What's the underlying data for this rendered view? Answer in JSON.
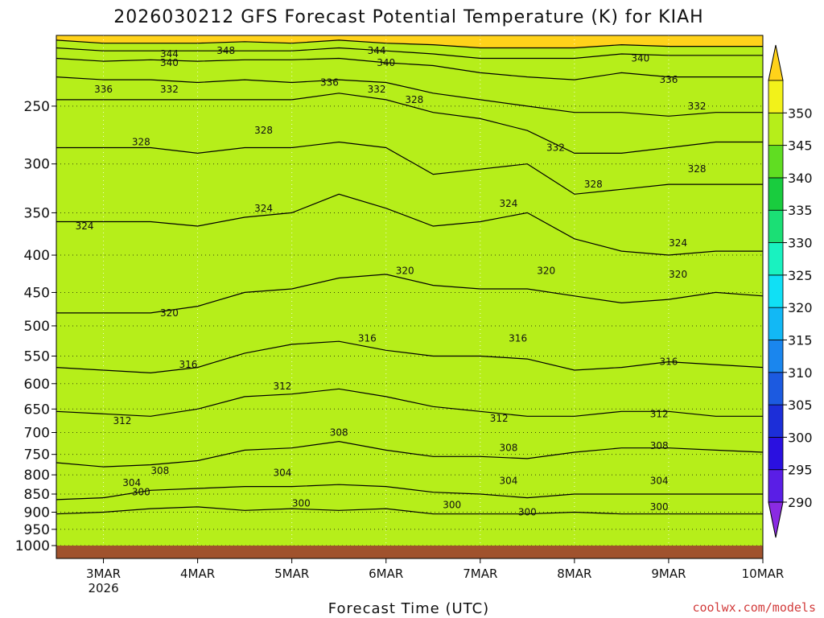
{
  "chart_data": {
    "type": "heatmap",
    "title": "2026030212 GFS Forecast Potential Temperature (K) for KIAH",
    "xlabel": "Forecast Time (UTC)",
    "ylabel": "",
    "credit": "coolwx.com/models",
    "y_scale": "pressure-log",
    "y_ticks": [
      250,
      300,
      350,
      400,
      450,
      500,
      550,
      600,
      650,
      700,
      750,
      800,
      850,
      900,
      950,
      1000
    ],
    "ylim": [
      1000,
      200
    ],
    "x_ticks": [
      {
        "label": "3MAR",
        "sub": "2026"
      },
      {
        "label": "4MAR",
        "sub": ""
      },
      {
        "label": "5MAR",
        "sub": ""
      },
      {
        "label": "6MAR",
        "sub": ""
      },
      {
        "label": "7MAR",
        "sub": ""
      },
      {
        "label": "8MAR",
        "sub": ""
      },
      {
        "label": "9MAR",
        "sub": ""
      },
      {
        "label": "10MAR",
        "sub": ""
      }
    ],
    "xlim_days": [
      2.5,
      10.0
    ],
    "grid": true,
    "colorbar": {
      "levels": [
        290,
        295,
        300,
        305,
        310,
        315,
        320,
        325,
        330,
        335,
        340,
        345,
        350
      ],
      "labels": [
        "290",
        "295",
        "300",
        "305",
        "310",
        "315",
        "320",
        "325",
        "330",
        "335",
        "340",
        "345",
        "350"
      ],
      "colors": [
        "#8a2be2",
        "#5a1ee6",
        "#2a10e0",
        "#1c2ed8",
        "#1c5ae0",
        "#1a86ee",
        "#12b8f5",
        "#10e0f5",
        "#19f2c0",
        "#1bdf75",
        "#19cc3e",
        "#60dd22",
        "#b6ee1a",
        "#f2f21a",
        "#ffd21a"
      ]
    },
    "isentropes": {
      "values": [
        300,
        304,
        308,
        312,
        316,
        320,
        324,
        328,
        332,
        336,
        340,
        344,
        348
      ],
      "levels_per_time": {
        "times": [
          2.5,
          3.0,
          3.5,
          4.0,
          4.5,
          5.0,
          5.5,
          6.0,
          6.5,
          7.0,
          7.5,
          8.0,
          8.5,
          9.0,
          9.5,
          10.0
        ],
        "300": [
          905,
          900,
          890,
          885,
          895,
          890,
          895,
          890,
          905,
          905,
          905,
          900,
          905,
          905,
          905,
          905
        ],
        "304": [
          865,
          860,
          840,
          835,
          830,
          830,
          825,
          830,
          845,
          850,
          860,
          850,
          850,
          850,
          850,
          850
        ],
        "308": [
          770,
          780,
          775,
          765,
          740,
          735,
          720,
          740,
          755,
          755,
          760,
          745,
          735,
          735,
          740,
          745
        ],
        "312": [
          655,
          660,
          665,
          650,
          625,
          620,
          610,
          625,
          645,
          655,
          665,
          665,
          655,
          655,
          665,
          665
        ],
        "316": [
          570,
          575,
          580,
          570,
          545,
          530,
          525,
          540,
          550,
          550,
          555,
          575,
          570,
          560,
          565,
          570
        ],
        "320": [
          480,
          480,
          480,
          470,
          450,
          445,
          430,
          425,
          440,
          445,
          445,
          455,
          465,
          460,
          450,
          455
        ],
        "324": [
          360,
          360,
          360,
          365,
          355,
          350,
          330,
          345,
          365,
          360,
          350,
          380,
          395,
          400,
          395,
          395
        ],
        "328": [
          285,
          285,
          285,
          290,
          285,
          285,
          280,
          285,
          310,
          305,
          300,
          330,
          325,
          320,
          320,
          320
        ],
        "332": [
          245,
          245,
          245,
          245,
          245,
          245,
          240,
          245,
          255,
          260,
          270,
          290,
          290,
          285,
          280,
          280
        ],
        "336": [
          228,
          230,
          230,
          232,
          230,
          232,
          230,
          232,
          240,
          245,
          250,
          255,
          255,
          258,
          255,
          255
        ],
        "340": [
          215,
          217,
          216,
          217,
          216,
          216,
          215,
          218,
          220,
          225,
          228,
          230,
          225,
          228,
          228,
          228
        ],
        "344": [
          208,
          210,
          210,
          210,
          210,
          210,
          208,
          210,
          212,
          215,
          215,
          215,
          212,
          213,
          213,
          213
        ],
        "348": [
          203,
          205,
          205,
          205,
          204,
          205,
          203,
          205,
          206,
          208,
          208,
          208,
          206,
          207,
          207,
          207
        ]
      }
    },
    "contour_labels": [
      {
        "value": "344",
        "t": 3.7,
        "p": 212
      },
      {
        "value": "340",
        "t": 3.7,
        "p": 218
      },
      {
        "value": "348",
        "t": 4.3,
        "p": 210
      },
      {
        "value": "344",
        "t": 5.9,
        "p": 210
      },
      {
        "value": "340",
        "t": 6.0,
        "p": 218
      },
      {
        "value": "340",
        "t": 8.7,
        "p": 215
      },
      {
        "value": "336",
        "t": 3.0,
        "p": 237
      },
      {
        "value": "332",
        "t": 3.7,
        "p": 237
      },
      {
        "value": "336",
        "t": 5.4,
        "p": 232
      },
      {
        "value": "332",
        "t": 5.9,
        "p": 237
      },
      {
        "value": "328",
        "t": 6.3,
        "p": 245
      },
      {
        "value": "336",
        "t": 9.0,
        "p": 230
      },
      {
        "value": "332",
        "t": 9.3,
        "p": 250
      },
      {
        "value": "328",
        "t": 3.4,
        "p": 280
      },
      {
        "value": "328",
        "t": 4.7,
        "p": 270
      },
      {
        "value": "332",
        "t": 7.8,
        "p": 285
      },
      {
        "value": "328",
        "t": 8.2,
        "p": 320
      },
      {
        "value": "328",
        "t": 9.3,
        "p": 305
      },
      {
        "value": "324",
        "t": 2.8,
        "p": 365
      },
      {
        "value": "324",
        "t": 4.7,
        "p": 345
      },
      {
        "value": "324",
        "t": 7.3,
        "p": 340
      },
      {
        "value": "324",
        "t": 9.1,
        "p": 385
      },
      {
        "value": "320",
        "t": 6.2,
        "p": 420
      },
      {
        "value": "320",
        "t": 7.7,
        "p": 420
      },
      {
        "value": "320",
        "t": 9.1,
        "p": 425
      },
      {
        "value": "320",
        "t": 3.7,
        "p": 480
      },
      {
        "value": "316",
        "t": 5.8,
        "p": 520
      },
      {
        "value": "316",
        "t": 7.4,
        "p": 520
      },
      {
        "value": "316",
        "t": 9.0,
        "p": 560
      },
      {
        "value": "316",
        "t": 3.9,
        "p": 565
      },
      {
        "value": "312",
        "t": 4.9,
        "p": 605
      },
      {
        "value": "312",
        "t": 3.2,
        "p": 675
      },
      {
        "value": "312",
        "t": 7.2,
        "p": 670
      },
      {
        "value": "312",
        "t": 8.9,
        "p": 660
      },
      {
        "value": "308",
        "t": 5.5,
        "p": 700
      },
      {
        "value": "308",
        "t": 7.3,
        "p": 735
      },
      {
        "value": "308",
        "t": 8.9,
        "p": 730
      },
      {
        "value": "308",
        "t": 3.6,
        "p": 790
      },
      {
        "value": "304",
        "t": 4.9,
        "p": 795
      },
      {
        "value": "304",
        "t": 3.3,
        "p": 820
      },
      {
        "value": "304",
        "t": 7.3,
        "p": 815
      },
      {
        "value": "304",
        "t": 8.9,
        "p": 815
      },
      {
        "value": "300",
        "t": 3.4,
        "p": 845
      },
      {
        "value": "300",
        "t": 5.1,
        "p": 875
      },
      {
        "value": "300",
        "t": 6.7,
        "p": 880
      },
      {
        "value": "300",
        "t": 7.5,
        "p": 900
      },
      {
        "value": "300",
        "t": 8.9,
        "p": 885
      }
    ],
    "surface_color": "#a0522d"
  }
}
